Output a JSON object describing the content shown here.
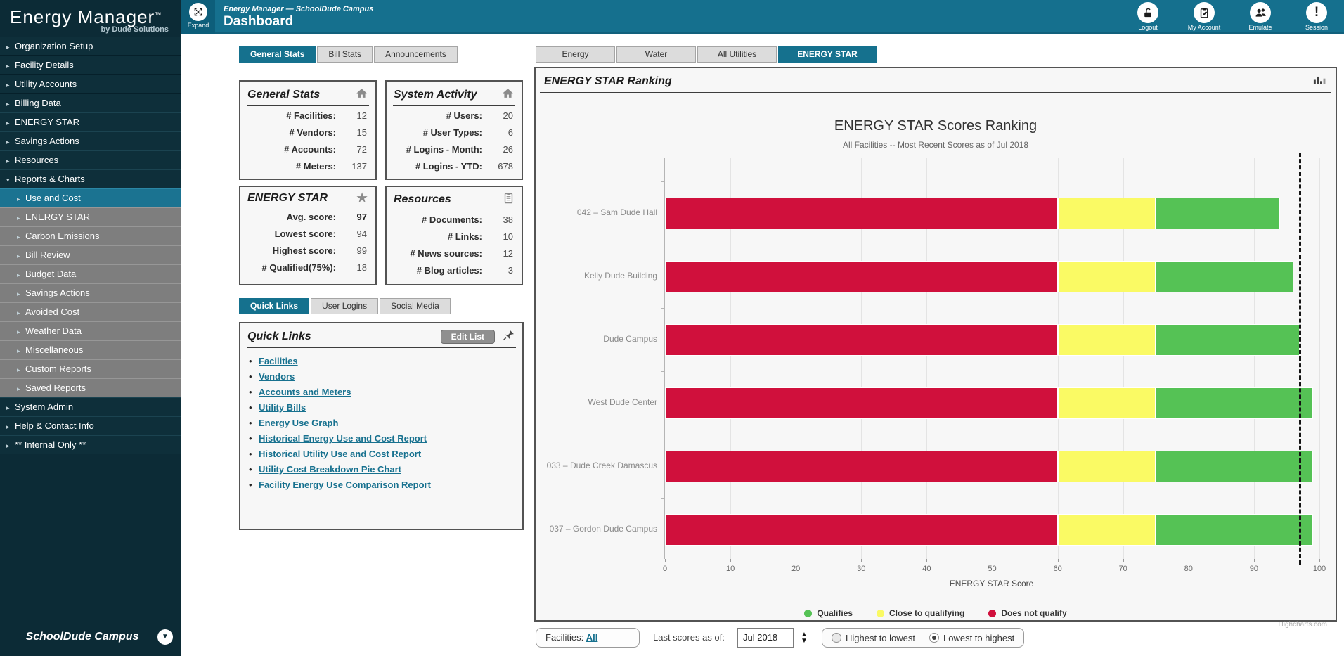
{
  "icons": {
    "chevron_right": "▸",
    "chevron_down": "▾",
    "caret_down": "▼",
    "spinner_up": "▲",
    "spinner_down": "▼",
    "star": "★",
    "bang": "!"
  },
  "sidebar": {
    "logo_title": "Energy Manager",
    "logo_tm": "™",
    "logo_subtitle": "by Dude Solutions",
    "items": [
      {
        "label": "Organization Setup",
        "level": "top",
        "state": "collapsed"
      },
      {
        "label": "Facility Details",
        "level": "top",
        "state": "collapsed"
      },
      {
        "label": "Utility Accounts",
        "level": "top",
        "state": "collapsed"
      },
      {
        "label": "Billing Data",
        "level": "top",
        "state": "collapsed"
      },
      {
        "label": "ENERGY STAR",
        "level": "top",
        "state": "collapsed"
      },
      {
        "label": "Savings Actions",
        "level": "top",
        "state": "collapsed"
      },
      {
        "label": "Resources",
        "level": "top",
        "state": "collapsed"
      },
      {
        "label": "Reports & Charts",
        "level": "top",
        "state": "expanded"
      },
      {
        "label": "Use and Cost",
        "level": "sub",
        "state": "selected"
      },
      {
        "label": "ENERGY STAR",
        "level": "sub",
        "state": "normal"
      },
      {
        "label": "Carbon Emissions",
        "level": "sub",
        "state": "normal"
      },
      {
        "label": "Bill Review",
        "level": "sub",
        "state": "normal"
      },
      {
        "label": "Budget Data",
        "level": "sub",
        "state": "normal"
      },
      {
        "label": "Savings Actions",
        "level": "sub",
        "state": "normal"
      },
      {
        "label": "Avoided Cost",
        "level": "sub",
        "state": "normal"
      },
      {
        "label": "Weather Data",
        "level": "sub",
        "state": "normal"
      },
      {
        "label": "Miscellaneous",
        "level": "sub",
        "state": "normal"
      },
      {
        "label": "Custom Reports",
        "level": "sub",
        "state": "normal"
      },
      {
        "label": "Saved Reports",
        "level": "sub",
        "state": "normal"
      },
      {
        "label": "System Admin",
        "level": "top",
        "state": "collapsed"
      },
      {
        "label": "Help & Contact Info",
        "level": "top",
        "state": "collapsed"
      },
      {
        "label": "** Internal Only **",
        "level": "top",
        "state": "collapsed"
      }
    ],
    "footer_campus": "SchoolDude Campus"
  },
  "topbar": {
    "expand_label": "Expand",
    "breadcrumb": "Energy Manager — SchoolDude Campus",
    "page_title": "Dashboard",
    "actions": [
      {
        "label": "Logout",
        "icon": "padlock-open-icon"
      },
      {
        "label": "My Account",
        "icon": "clipboard-pencil-icon"
      },
      {
        "label": "Emulate",
        "icon": "people-icon"
      },
      {
        "label": "Session",
        "icon": "exclamation-icon"
      }
    ]
  },
  "left_tabs": [
    "General Stats",
    "Bill Stats",
    "Announcements"
  ],
  "quicklinks_tabs": [
    "Quick Links",
    "User Logins",
    "Social Media"
  ],
  "right_tabs": [
    "Energy",
    "Water",
    "All Utilities",
    "ENERGY STAR"
  ],
  "panels": {
    "general_stats": {
      "title": "General Stats",
      "rows": [
        {
          "label": "# Facilities:",
          "value": "12"
        },
        {
          "label": "# Vendors:",
          "value": "15"
        },
        {
          "label": "# Accounts:",
          "value": "72"
        },
        {
          "label": "# Meters:",
          "value": "137"
        }
      ]
    },
    "system_activity": {
      "title": "System Activity",
      "rows": [
        {
          "label": "# Users:",
          "value": "20"
        },
        {
          "label": "# User Types:",
          "value": "6"
        },
        {
          "label": "# Logins - Month:",
          "value": "26"
        },
        {
          "label": "# Logins - YTD:",
          "value": "678"
        }
      ]
    },
    "energy_star": {
      "title": "ENERGY STAR",
      "rows": [
        {
          "label": "Avg. score:",
          "value": "97"
        },
        {
          "label": "Lowest score:",
          "value": "94"
        },
        {
          "label": "Highest score:",
          "value": "99"
        },
        {
          "label": "# Qualified(75%):",
          "value": "18"
        }
      ]
    },
    "resources": {
      "title": "Resources",
      "rows": [
        {
          "label": "# Documents:",
          "value": "38"
        },
        {
          "label": "# Links:",
          "value": "10"
        },
        {
          "label": "# News sources:",
          "value": "12"
        },
        {
          "label": "# Blog articles:",
          "value": "3"
        }
      ]
    }
  },
  "quicklinks": {
    "title": "Quick Links",
    "edit_button": "Edit List",
    "links": [
      "Facilities",
      "Vendors",
      "Accounts and Meters",
      "Utility Bills",
      "Energy Use Graph",
      "Historical Energy Use and Cost Report",
      "Historical Utility Use and Cost Report",
      "Utility Cost Breakdown Pie Chart",
      "Facility Energy Use Comparison Report"
    ]
  },
  "chart_panel_header": "ENERGY STAR Ranking",
  "chart_data": {
    "type": "bar",
    "orientation": "horizontal-stacked",
    "title": "ENERGY STAR Scores Ranking",
    "subtitle": "All Facilities -- Most Recent Scores as of Jul 2018",
    "categories": [
      "042 – Sam Dude Hall",
      "Kelly Dude Building",
      "Dude Campus",
      "West Dude Center",
      "033 – Dude Creek Damascus",
      "037 – Gordon Dude Campus"
    ],
    "values": [
      94,
      96,
      97,
      99,
      99,
      99
    ],
    "zone_thresholds": {
      "does_not_qualify_max": 60,
      "close_to_qualifying_max": 75
    },
    "zone_colors": {
      "does_not_qualify": "#D0103C",
      "close_to_qualifying": "#FAFA64",
      "qualifies": "#55C255"
    },
    "reference_line_value": 97,
    "xlabel": "ENERGY STAR Score",
    "xlim": [
      0,
      100
    ],
    "xtick_step": 10,
    "grid": true,
    "legend_position": "bottom",
    "legend": [
      {
        "label": "Qualifies",
        "color": "#55C255"
      },
      {
        "label": "Close to qualifying",
        "color": "#FAFA64"
      },
      {
        "label": "Does not qualify",
        "color": "#D0103C"
      }
    ],
    "credit": "Highcharts.com"
  },
  "controls": {
    "facilities_label": "Facilities: ",
    "facilities_value": "All",
    "scores_label": "Last scores as of:",
    "date_value": "Jul 2018",
    "sort_options": [
      {
        "label": "Highest to lowest",
        "selected": false
      },
      {
        "label": "Lowest to highest",
        "selected": true
      }
    ]
  }
}
